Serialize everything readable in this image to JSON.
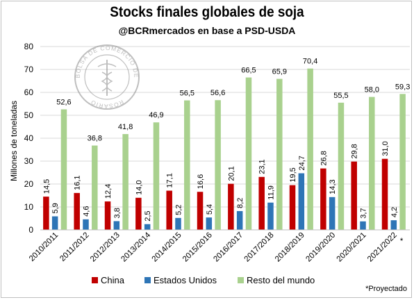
{
  "chart_data": {
    "type": "bar",
    "title": "Stocks finales globales de soja",
    "subtitle": "@BCRmercados en base a PSD-USDA",
    "ylabel": "Millones de toneladas",
    "ylim": [
      0,
      80
    ],
    "yticks": [
      0,
      10,
      20,
      30,
      40,
      50,
      60,
      70,
      80
    ],
    "categories": [
      "2010/2011",
      "2011/2012",
      "2012/2013",
      "2013/2014",
      "2014/2015",
      "2015/2016",
      "2016/2017",
      "2017/2018",
      "2018/2019",
      "2019/2020",
      "2020/2021",
      "2021/2022"
    ],
    "projected_marker": "*",
    "series": [
      {
        "name": "China",
        "color": "#c00000",
        "values": [
          14.5,
          16.1,
          12.4,
          14.0,
          17.1,
          16.6,
          20.1,
          23.1,
          19.5,
          26.8,
          29.8,
          31.0
        ],
        "labels": [
          "14,5",
          "16,1",
          "12,4",
          "14,0",
          "17,1",
          "16,6",
          "20,1",
          "23,1",
          "19,5",
          "26,8",
          "29,8",
          "31,0"
        ]
      },
      {
        "name": "Estados Unidos",
        "color": "#2e75b6",
        "values": [
          5.9,
          4.6,
          3.8,
          2.5,
          5.2,
          5.4,
          8.2,
          11.9,
          24.7,
          14.3,
          3.7,
          4.2
        ],
        "labels": [
          "5,9",
          "4,6",
          "3,8",
          "2,5",
          "5,2",
          "5,4",
          "8,2",
          "11,9",
          "24,7",
          "14,3",
          "3,7",
          "4,2"
        ]
      },
      {
        "name": "Resto del mundo",
        "color": "#a9d18e",
        "values": [
          52.6,
          36.8,
          41.8,
          46.9,
          56.5,
          56.6,
          66.5,
          65.9,
          70.4,
          55.5,
          58.0,
          59.3
        ],
        "labels": [
          "52,6",
          "36,8",
          "41,8",
          "46,9",
          "56,5",
          "56,6",
          "66,5",
          "65,9",
          "70,4",
          "55,5",
          "58,0",
          "59,3"
        ]
      }
    ],
    "legend_position": "bottom",
    "grid": true,
    "footnote": "*Proyectado",
    "watermark_text": "BOLSA DE COMERCIO DE ROSARIO"
  }
}
